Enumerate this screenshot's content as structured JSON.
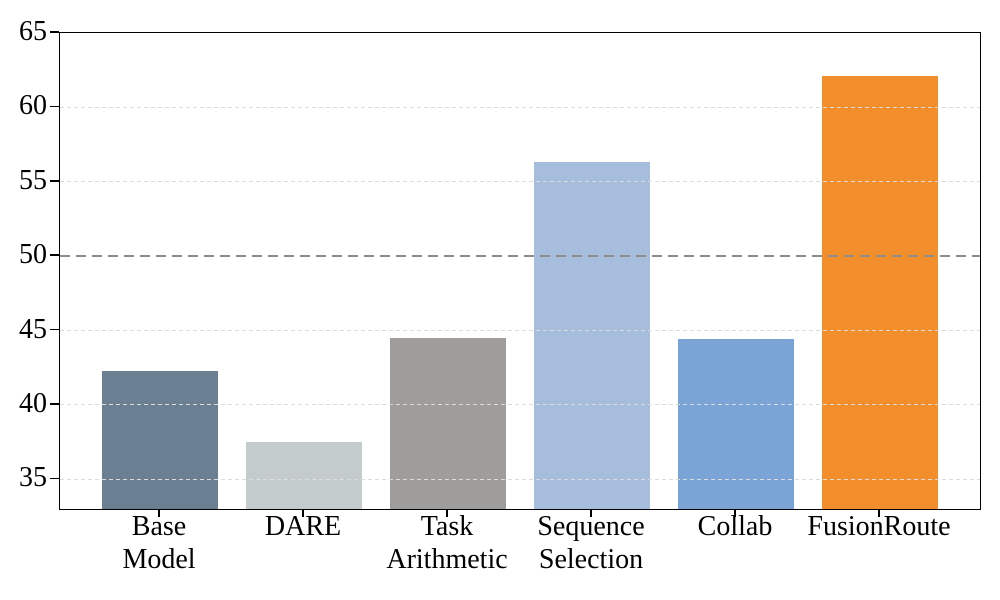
{
  "chart_data": {
    "type": "bar",
    "categories": [
      "Base\nModel",
      "DARE",
      "Task\nArithmetic",
      "Sequence\nSelection",
      "Collab",
      "FusionRoute"
    ],
    "values": [
      42.3,
      37.5,
      44.5,
      56.3,
      44.4,
      62.1
    ],
    "bar_colors": [
      "#6B7F92",
      "#C4CBCC",
      "#9E9D9B",
      "#A7BDDC",
      "#7AA3D6",
      "#F28E2B"
    ],
    "ylim": [
      33,
      65
    ],
    "yticks": [
      35,
      40,
      45,
      50,
      55,
      60,
      65
    ],
    "reference_line": {
      "y": 50,
      "color": "#8C8C8C",
      "style": "dashed"
    },
    "grid": {
      "axis": "y",
      "style": "dashed",
      "color": "#DCDCDC",
      "on": true
    },
    "legend": "none",
    "title": "",
    "xlabel": "",
    "ylabel": ""
  },
  "colors": {
    "background": "#FFFFFF",
    "spine": "#000000",
    "tick_label": "#000000",
    "gridline": "#DCDCDC",
    "reference_line": "#8C8C8C"
  }
}
